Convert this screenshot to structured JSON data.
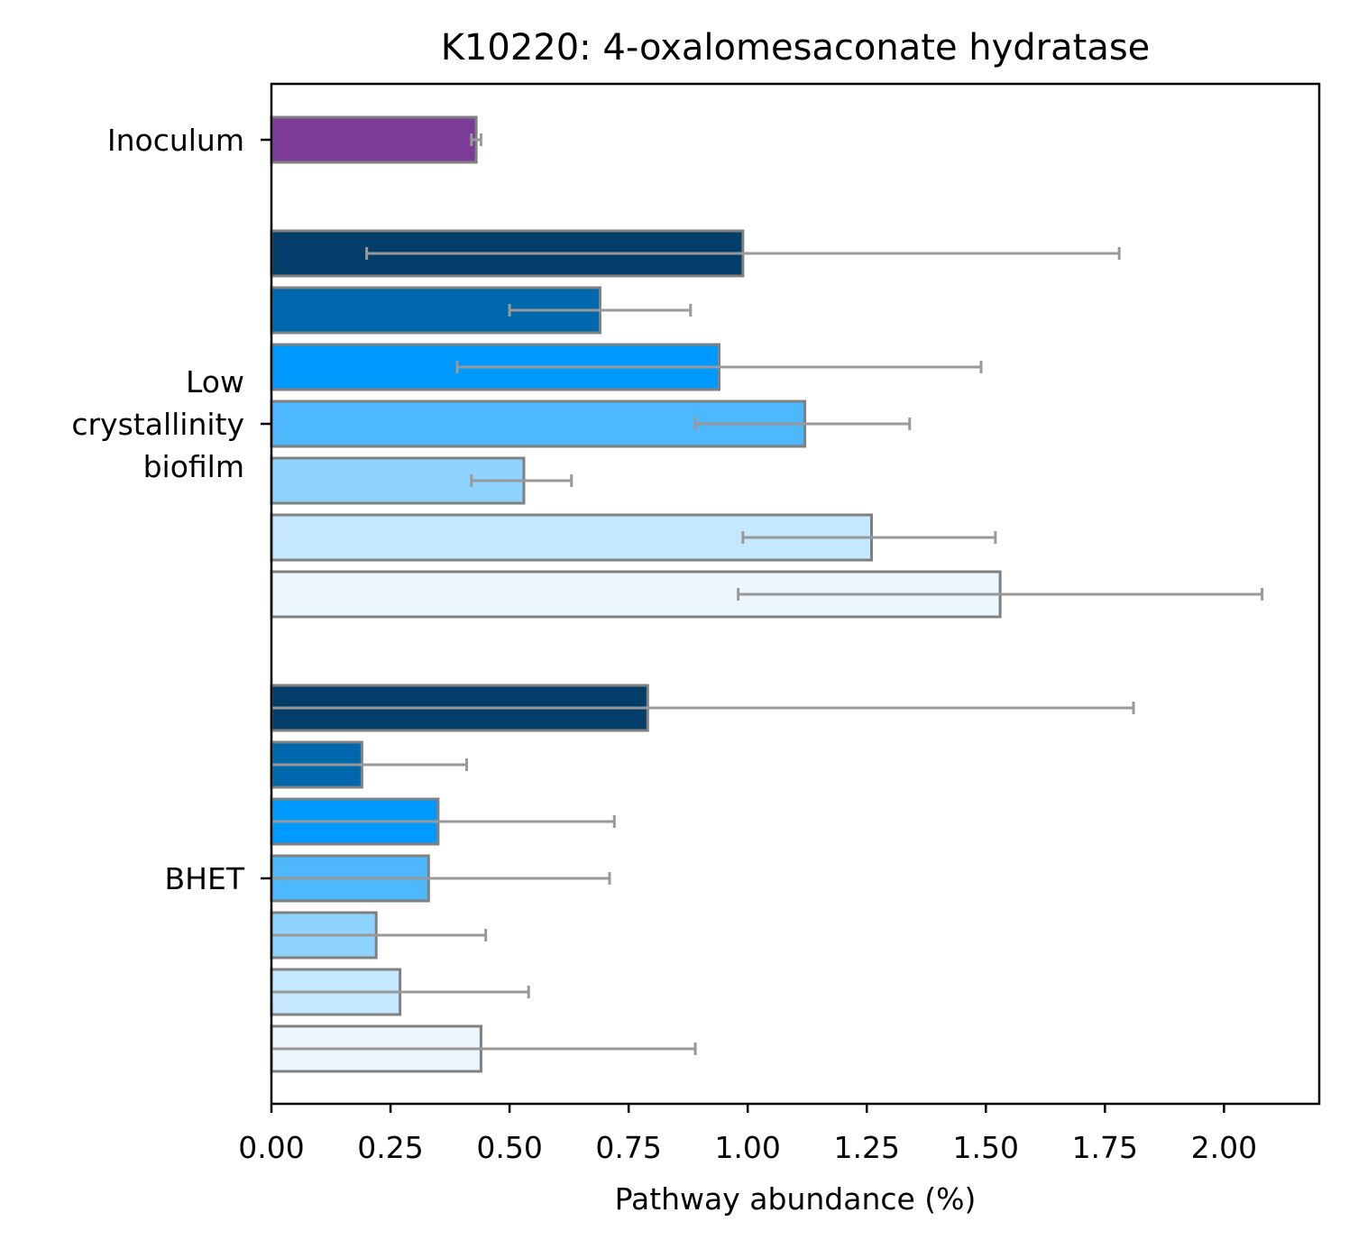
{
  "chart_data": {
    "type": "bar",
    "orientation": "horizontal",
    "title": "K10220: 4-oxalomesaconate hydratase",
    "xlabel": "Pathway abundance (%)",
    "ylabel": "",
    "xlim": [
      0,
      2.2
    ],
    "xticks": [
      "0.00",
      "0.25",
      "0.50",
      "0.75",
      "1.00",
      "1.25",
      "1.50",
      "1.75",
      "2.00"
    ],
    "grid": false,
    "legend": "none",
    "groups": [
      {
        "label": [
          "Inoculum"
        ],
        "bars": [
          {
            "value": 0.43,
            "err_low": 0.42,
            "err_high": 0.44,
            "color": "#7b3b96"
          }
        ]
      },
      {
        "label": [
          "Low",
          "crystallinity",
          "biofilm"
        ],
        "bars": [
          {
            "value": 0.99,
            "err_low": 0.2,
            "err_high": 1.78,
            "color": "#033e6b"
          },
          {
            "value": 0.69,
            "err_low": 0.5,
            "err_high": 0.88,
            "color": "#0069ad"
          },
          {
            "value": 0.94,
            "err_low": 0.39,
            "err_high": 1.49,
            "color": "#0099ff"
          },
          {
            "value": 1.12,
            "err_low": 0.89,
            "err_high": 1.34,
            "color": "#4db8fb"
          },
          {
            "value": 0.53,
            "err_low": 0.42,
            "err_high": 0.63,
            "color": "#8dd3fd"
          },
          {
            "value": 1.26,
            "err_low": 0.99,
            "err_high": 1.52,
            "color": "#c6e8fe"
          },
          {
            "value": 1.53,
            "err_low": 0.98,
            "err_high": 2.08,
            "color": "#ebf6fe"
          }
        ]
      },
      {
        "label": [
          "BHET"
        ],
        "bars": [
          {
            "value": 0.79,
            "err_low": 0.0,
            "err_high": 1.81,
            "color": "#033e6b"
          },
          {
            "value": 0.19,
            "err_low": 0.0,
            "err_high": 0.41,
            "color": "#0069ad"
          },
          {
            "value": 0.35,
            "err_low": 0.0,
            "err_high": 0.72,
            "color": "#0099ff"
          },
          {
            "value": 0.33,
            "err_low": 0.0,
            "err_high": 0.71,
            "color": "#4db8fb"
          },
          {
            "value": 0.22,
            "err_low": 0.0,
            "err_high": 0.45,
            "color": "#8dd3fd"
          },
          {
            "value": 0.27,
            "err_low": 0.0,
            "err_high": 0.54,
            "color": "#c6e8fe"
          },
          {
            "value": 0.44,
            "err_low": 0.0,
            "err_high": 0.89,
            "color": "#ebf6fe"
          }
        ]
      }
    ],
    "colors": {
      "bar_edge": "#808080",
      "error_bar": "#999999",
      "axes": "#000000"
    }
  }
}
